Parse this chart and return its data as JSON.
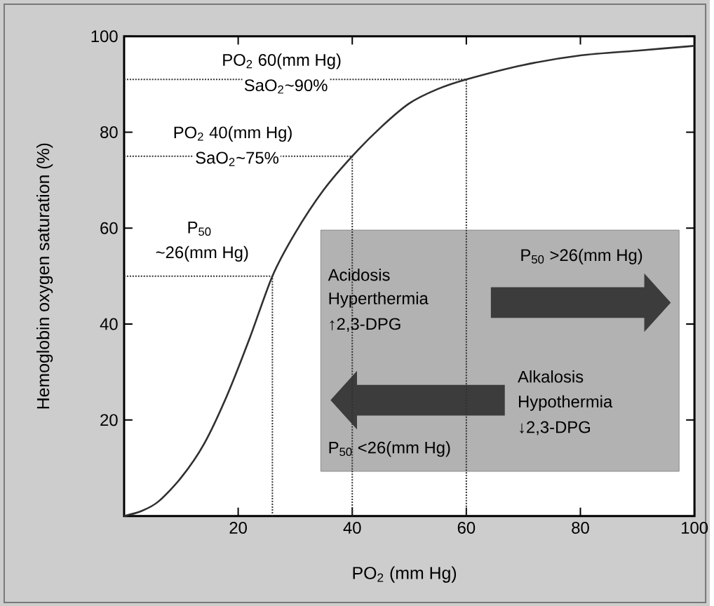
{
  "chart_data": {
    "type": "line",
    "xlabel": "PO$_{2}$ (mm Hg)",
    "ylabel": "Hemoglobin oxygen saturation (%)",
    "xlim": [
      0,
      100
    ],
    "ylim": [
      0,
      100
    ],
    "xticks": [
      20,
      40,
      60,
      80,
      100
    ],
    "yticks": [
      20,
      40,
      60,
      80,
      100
    ],
    "grid": false,
    "marker": "none",
    "series": [
      {
        "line_style": "solid",
        "color": "#303030",
        "x": [
          0,
          3,
          6,
          10,
          14,
          18,
          22,
          26,
          30,
          35,
          40,
          45,
          50,
          55,
          60,
          70,
          80,
          90,
          100
        ],
        "values": [
          0,
          1,
          3,
          8,
          15,
          25,
          37,
          50,
          59,
          68,
          75,
          81,
          86,
          89,
          91,
          94,
          96,
          97,
          98
        ]
      },
      {
        "line_style": "dotted",
        "color": "#303030",
        "x": [
          0,
          26,
          26
        ],
        "values": [
          50,
          50,
          0
        ]
      },
      {
        "line_style": "dotted",
        "color": "#303030",
        "x": [
          0,
          40,
          40
        ],
        "values": [
          75,
          75,
          0
        ]
      },
      {
        "line_style": "dotted",
        "color": "#303030",
        "x": [
          0,
          60,
          60
        ],
        "values": [
          91,
          91,
          0
        ]
      }
    ],
    "annotations": [
      "PO$_{2}$ 60(mm Hg)",
      "SaO$_{2}$~90%",
      "PO$_{2}$ 40(mm Hg)",
      "SaO$_{2}$~75%",
      "P$_{50}$",
      "~26(mm Hg)",
      "P$_{50}$ >26(mm Hg)",
      "Acidosis",
      "Hyperthermia",
      "↑2,3-DPG",
      "Alkalosis",
      "Hypothermia",
      "↓2,3-DPG",
      "P$_{50}$ <26(mm Hg)"
    ]
  }
}
